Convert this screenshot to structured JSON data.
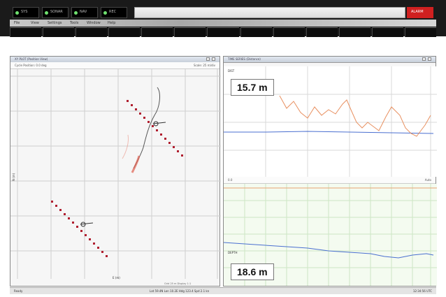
{
  "header": {
    "status_buttons": [
      {
        "label": "SYS"
      },
      {
        "label": "SONAR"
      },
      {
        "label": "NAV"
      },
      {
        "label": "REC"
      }
    ],
    "alarm_label": "ALARM"
  },
  "menu": {
    "items": [
      "File",
      "View",
      "Settings",
      "Tools",
      "Window",
      "Help"
    ]
  },
  "tabs": {
    "count": 13
  },
  "plan_panel": {
    "title": "XY PLOT (Position View)",
    "subtitle_left": "Cycle Position: 0.0 deg",
    "subtitle_right": "Scale: 25 m/div",
    "y_axis_label": "N (m)",
    "x_axis_label": "E (m)",
    "bottom_note": "Grid 25 m  Display 1:1"
  },
  "chart_panel": {
    "title": "TIME SERIES (Distance)",
    "top_readout": "15.7 m",
    "bottom_readout": "18.6 m",
    "top_chart_label": "DIST",
    "bottom_chart_label": "DEPTH",
    "bottom_sub_left": "0.0",
    "bottom_sub_right": "Auto"
  },
  "footer": {
    "left": "Ready",
    "center": "Lat 59.4N  Lon 10.2E  Hdg 123.4  Spd 2.1 kn",
    "right": "12:34:56 UTC"
  },
  "colors": {
    "alarm": "#d02020",
    "trail": "#e06050",
    "line_blue": "#4a6fd0",
    "line_orange": "#e89060",
    "grid": "#c8c8c8",
    "dots": "#b02030"
  }
}
